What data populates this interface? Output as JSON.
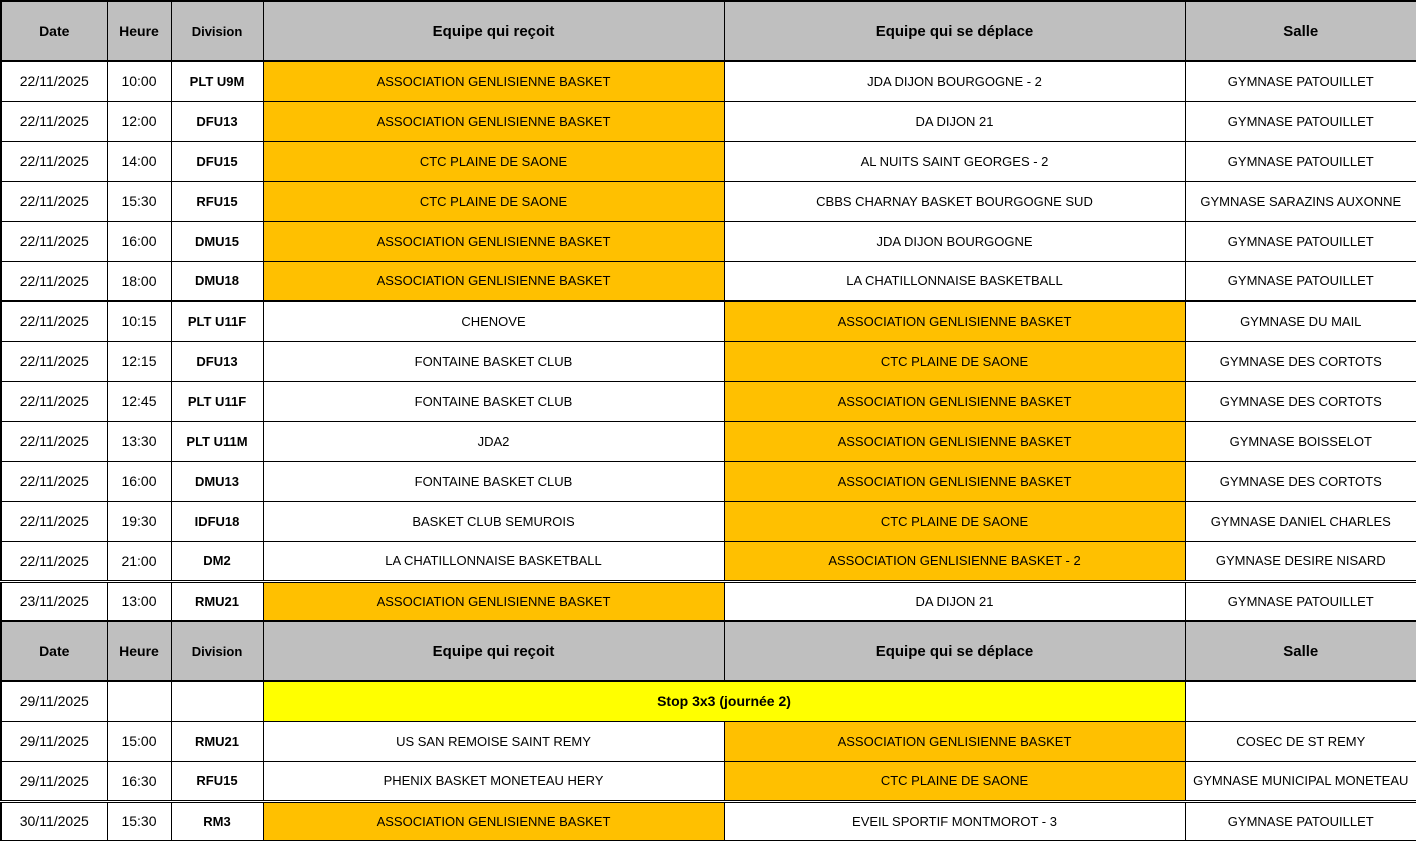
{
  "colors": {
    "header_bg": "#BFBFBF",
    "highlight_orange": "#FFC000",
    "banner_yellow": "#FFFF00",
    "border_black": "#000000",
    "cell_bg": "#FFFFFF"
  },
  "table": {
    "headers": [
      "Date",
      "Heure",
      "Division",
      "Equipe qui reçoit",
      "Equipe qui se déplace",
      "Salle"
    ],
    "rows": [
      {
        "kind": "header"
      },
      {
        "kind": "match",
        "date": "22/11/2025",
        "time": "10:00",
        "division": "PLT U9M",
        "home": "ASSOCIATION GENLISIENNE BASKET",
        "away": "JDA DIJON BOURGOGNE - 2",
        "salle": "GYMNASE PATOUILLET",
        "home_hl": true,
        "away_hl": false,
        "sep": "thin"
      },
      {
        "kind": "match",
        "date": "22/11/2025",
        "time": "12:00",
        "division": "DFU13",
        "home": "ASSOCIATION GENLISIENNE BASKET",
        "away": "DA DIJON 21",
        "salle": "GYMNASE PATOUILLET",
        "home_hl": true,
        "away_hl": false,
        "sep": "thin"
      },
      {
        "kind": "match",
        "date": "22/11/2025",
        "time": "14:00",
        "division": "DFU15",
        "home": "CTC PLAINE DE SAONE",
        "away": "AL NUITS SAINT GEORGES - 2",
        "salle": "GYMNASE PATOUILLET",
        "home_hl": true,
        "away_hl": false,
        "sep": "thin"
      },
      {
        "kind": "match",
        "date": "22/11/2025",
        "time": "15:30",
        "division": "RFU15",
        "home": "CTC PLAINE DE SAONE",
        "away": "CBBS CHARNAY BASKET BOURGOGNE SUD",
        "salle": "GYMNASE SARAZINS AUXONNE",
        "home_hl": true,
        "away_hl": false,
        "sep": "thin"
      },
      {
        "kind": "match",
        "date": "22/11/2025",
        "time": "16:00",
        "division": "DMU15",
        "home": "ASSOCIATION GENLISIENNE BASKET",
        "away": "JDA DIJON BOURGOGNE",
        "salle": "GYMNASE PATOUILLET",
        "home_hl": true,
        "away_hl": false,
        "sep": "thin"
      },
      {
        "kind": "match",
        "date": "22/11/2025",
        "time": "18:00",
        "division": "DMU18",
        "home": "ASSOCIATION GENLISIENNE BASKET",
        "away": "LA CHATILLONNAISE BASKETBALL",
        "salle": "GYMNASE PATOUILLET",
        "home_hl": true,
        "away_hl": false,
        "sep": "thin"
      },
      {
        "kind": "match",
        "date": "22/11/2025",
        "time": "10:15",
        "division": "PLT U11F",
        "home": "CHENOVE",
        "away": "ASSOCIATION GENLISIENNE BASKET",
        "salle": "GYMNASE DU MAIL",
        "home_hl": false,
        "away_hl": true,
        "sep": "medium"
      },
      {
        "kind": "match",
        "date": "22/11/2025",
        "time": "12:15",
        "division": "DFU13",
        "home": "FONTAINE BASKET CLUB",
        "away": "CTC PLAINE DE SAONE",
        "salle": "GYMNASE DES CORTOTS",
        "home_hl": false,
        "away_hl": true,
        "sep": "thin"
      },
      {
        "kind": "match",
        "date": "22/11/2025",
        "time": "12:45",
        "division": "PLT U11F",
        "home": "FONTAINE BASKET CLUB",
        "away": "ASSOCIATION GENLISIENNE BASKET",
        "salle": "GYMNASE DES CORTOTS",
        "home_hl": false,
        "away_hl": true,
        "sep": "thin"
      },
      {
        "kind": "match",
        "date": "22/11/2025",
        "time": "13:30",
        "division": "PLT U11M",
        "home": "JDA2",
        "away": "ASSOCIATION GENLISIENNE BASKET",
        "salle": "GYMNASE BOISSELOT",
        "home_hl": false,
        "away_hl": true,
        "sep": "thin"
      },
      {
        "kind": "match",
        "date": "22/11/2025",
        "time": "16:00",
        "division": "DMU13",
        "home": "FONTAINE BASKET CLUB",
        "away": "ASSOCIATION GENLISIENNE BASKET",
        "salle": "GYMNASE DES CORTOTS",
        "home_hl": false,
        "away_hl": true,
        "sep": "thin"
      },
      {
        "kind": "match",
        "date": "22/11/2025",
        "time": "19:30",
        "division": "IDFU18",
        "home": "BASKET CLUB SEMUROIS",
        "away": "CTC PLAINE DE SAONE",
        "salle": "GYMNASE DANIEL CHARLES",
        "home_hl": false,
        "away_hl": true,
        "sep": "thin"
      },
      {
        "kind": "match",
        "date": "22/11/2025",
        "time": "21:00",
        "division": "DM2",
        "home": "LA CHATILLONNAISE BASKETBALL",
        "away": "ASSOCIATION GENLISIENNE BASKET - 2",
        "salle": "GYMNASE DESIRE NISARD",
        "home_hl": false,
        "away_hl": true,
        "sep": "thin"
      },
      {
        "kind": "match",
        "date": "23/11/2025",
        "time": "13:00",
        "division": "RMU21",
        "home": "ASSOCIATION GENLISIENNE BASKET",
        "away": "DA DIJON 21",
        "salle": "GYMNASE PATOUILLET",
        "home_hl": true,
        "away_hl": false,
        "sep": "double"
      },
      {
        "kind": "header"
      },
      {
        "kind": "banner",
        "date": "29/11/2025",
        "label": "Stop 3x3 (journée 2)",
        "salle": "",
        "sep": "thin"
      },
      {
        "kind": "match",
        "date": "29/11/2025",
        "time": "15:00",
        "division": "RMU21",
        "home": "US SAN REMOISE SAINT REMY",
        "away": "ASSOCIATION GENLISIENNE BASKET",
        "salle": "COSEC DE ST REMY",
        "home_hl": false,
        "away_hl": true,
        "sep": "thin"
      },
      {
        "kind": "match",
        "date": "29/11/2025",
        "time": "16:30",
        "division": "RFU15",
        "home": "PHENIX BASKET MONETEAU HERY",
        "away": "CTC PLAINE DE SAONE",
        "salle": "GYMNASE MUNICIPAL MONETEAU",
        "home_hl": false,
        "away_hl": true,
        "sep": "thin"
      },
      {
        "kind": "match",
        "date": "30/11/2025",
        "time": "15:30",
        "division": "RM3",
        "home": "ASSOCIATION GENLISIENNE BASKET",
        "away": "EVEIL SPORTIF MONTMOROT - 3",
        "salle": "GYMNASE PATOUILLET",
        "home_hl": true,
        "away_hl": false,
        "sep": "double"
      }
    ]
  }
}
